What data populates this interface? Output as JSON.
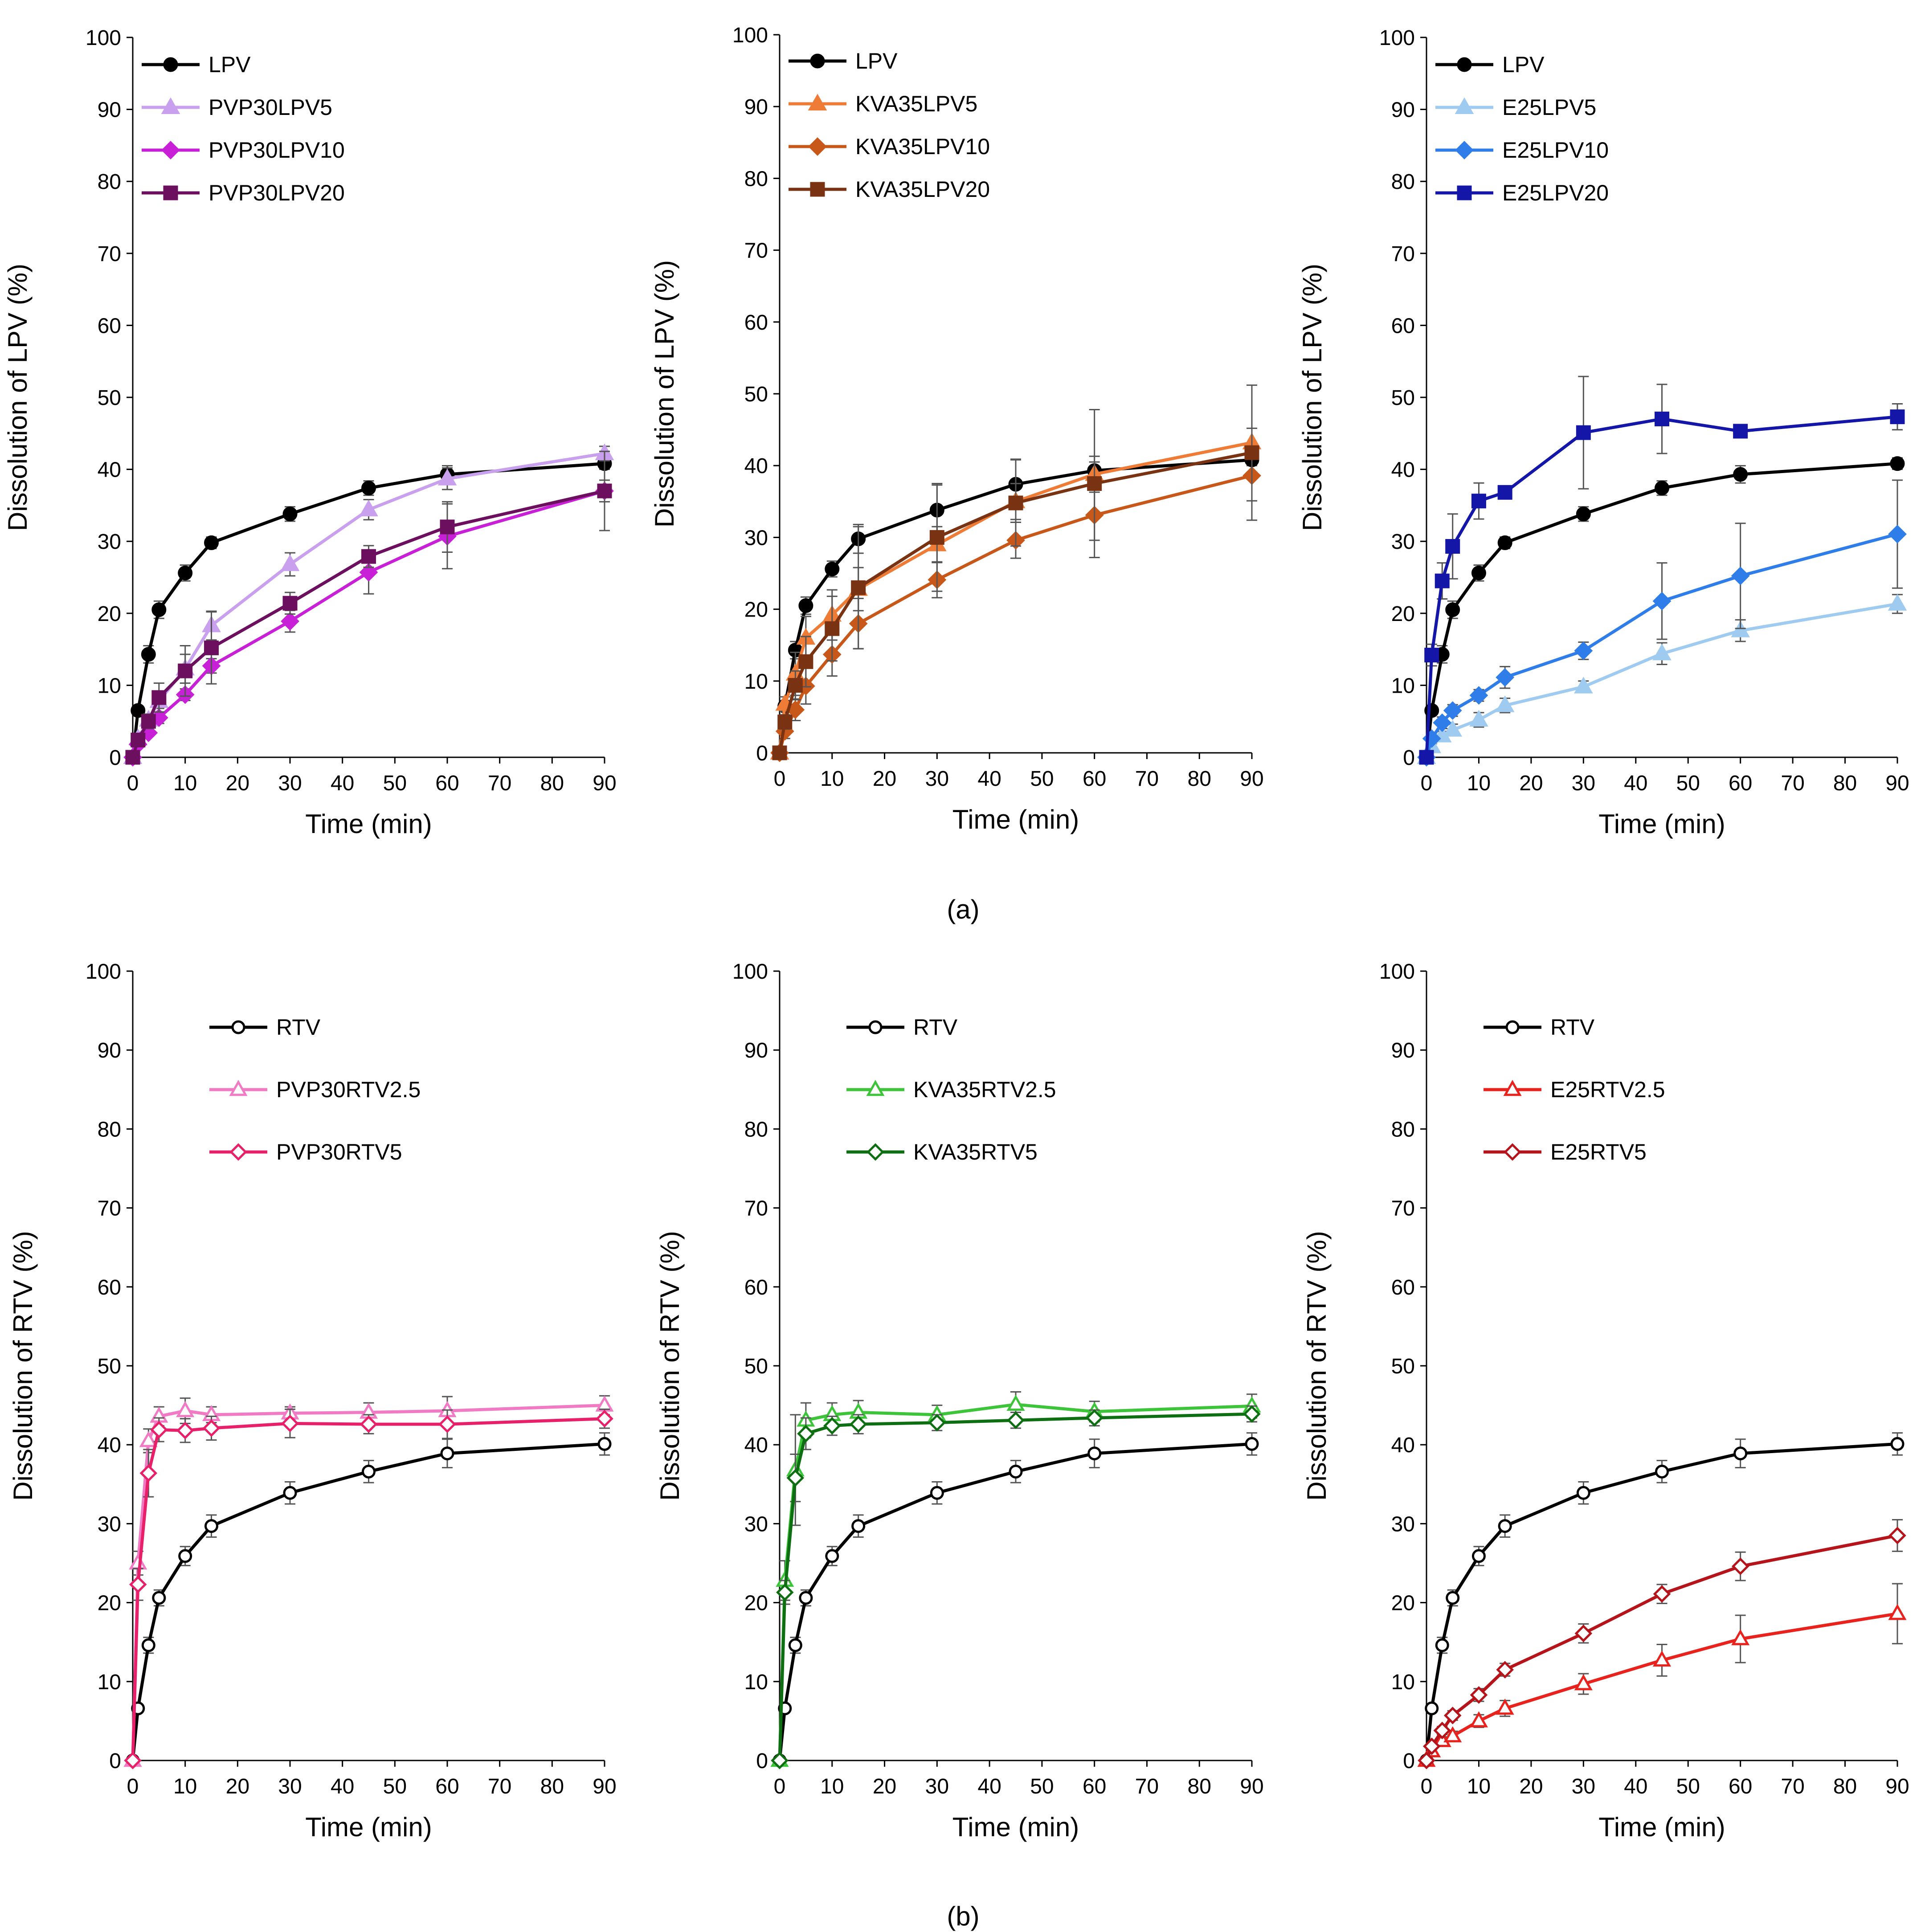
{
  "figure": {
    "caption_a": "(a)",
    "caption_b": "(b)"
  },
  "chart_data": [
    {
      "id": "a1",
      "type": "line",
      "xlabel": "Time (min)",
      "ylabel": "Dissolution of LPV (%)",
      "xlim": [
        0,
        90
      ],
      "xticks": [
        0,
        10,
        20,
        30,
        40,
        50,
        60,
        70,
        80,
        90
      ],
      "ylim": [
        0,
        100
      ],
      "yticks": [
        0,
        10,
        20,
        30,
        40,
        50,
        60,
        70,
        80,
        90,
        100
      ],
      "legend": "top-left",
      "series": [
        {
          "name": "LPV",
          "color": "#000000",
          "marker": "circle",
          "filled": true,
          "x": [
            0,
            1,
            3,
            5,
            10,
            15,
            30,
            45,
            60,
            90
          ],
          "y": [
            0,
            6.5,
            14.3,
            20.5,
            25.6,
            29.8,
            33.8,
            37.4,
            39.3,
            40.8
          ],
          "err": [
            0,
            0.5,
            1.2,
            1.2,
            1.1,
            0.8,
            1.0,
            1.0,
            1.2,
            0.8
          ]
        },
        {
          "name": "PVP30LPV5",
          "color": "#c9a0ee",
          "marker": "triangle",
          "filled": true,
          "x": [
            0,
            1,
            3,
            5,
            10,
            15,
            30,
            45,
            60,
            90
          ],
          "y": [
            0,
            2.6,
            5.2,
            7.8,
            12.3,
            18.3,
            26.8,
            34.4,
            38.7,
            42.2
          ],
          "err": [
            0,
            0.4,
            0.8,
            1.0,
            2.0,
            2.0,
            1.6,
            1.4,
            1.5,
            1.0
          ]
        },
        {
          "name": "PVP30LPV10",
          "color": "#c720d6",
          "marker": "diamond",
          "filled": true,
          "x": [
            0,
            1,
            3,
            5,
            10,
            15,
            30,
            45,
            60,
            90
          ],
          "y": [
            0,
            1.8,
            3.4,
            5.5,
            8.7,
            12.7,
            18.9,
            25.7,
            30.7,
            37.0
          ],
          "err": [
            0,
            0.3,
            0.5,
            0.8,
            0.8,
            1.0,
            1.5,
            3.0,
            4.5,
            5.5
          ]
        },
        {
          "name": "PVP30LPV20",
          "color": "#6b0f5e",
          "marker": "square",
          "filled": true,
          "x": [
            0,
            1,
            3,
            5,
            10,
            15,
            30,
            45,
            60,
            90
          ],
          "y": [
            0,
            2.4,
            5.0,
            8.3,
            12.0,
            15.2,
            21.4,
            27.9,
            32.0,
            37.0
          ],
          "err": [
            0,
            0.5,
            1.0,
            2.0,
            3.5,
            5.0,
            1.5,
            1.5,
            3.5,
            1.5
          ]
        }
      ]
    },
    {
      "id": "a2",
      "type": "line",
      "xlabel": "Time (min)",
      "ylabel": "Dissolution of LPV (%)",
      "xlim": [
        0,
        90
      ],
      "xticks": [
        0,
        10,
        20,
        30,
        40,
        50,
        60,
        70,
        80,
        90
      ],
      "ylim": [
        0,
        100
      ],
      "yticks": [
        0,
        10,
        20,
        30,
        40,
        50,
        60,
        70,
        80,
        90,
        100
      ],
      "legend": "top-left",
      "series": [
        {
          "name": "LPV",
          "color": "#000000",
          "marker": "circle",
          "filled": true,
          "x": [
            0,
            1,
            3,
            5,
            10,
            15,
            30,
            45,
            60,
            90
          ],
          "y": [
            0,
            6.5,
            14.3,
            20.5,
            25.6,
            29.8,
            33.8,
            37.4,
            39.3,
            40.8
          ],
          "err": [
            0,
            0.5,
            1.2,
            1.2,
            1.1,
            2.0,
            3.5,
            3.5,
            1.2,
            0.8
          ]
        },
        {
          "name": "KVA35LPV5",
          "color": "#ee7b36",
          "marker": "triangle",
          "filled": true,
          "x": [
            0,
            1,
            3,
            5,
            10,
            15,
            30,
            45,
            60,
            90
          ],
          "y": [
            0,
            6.8,
            11.0,
            16.0,
            19.2,
            22.8,
            29.0,
            35.0,
            38.8,
            43.2
          ],
          "err": [
            0,
            1.0,
            3.0,
            3.0,
            3.5,
            3.0,
            2.5,
            2.5,
            2.5,
            2.0
          ]
        },
        {
          "name": "KVA35LPV10",
          "color": "#c8571a",
          "marker": "diamond",
          "filled": true,
          "x": [
            0,
            1,
            3,
            5,
            10,
            15,
            30,
            45,
            60,
            90
          ],
          "y": [
            0,
            3.0,
            6.0,
            9.3,
            13.7,
            18.0,
            24.1,
            29.6,
            33.1,
            38.6
          ],
          "err": [
            0,
            1.0,
            1.5,
            2.5,
            3.0,
            3.5,
            2.5,
            2.5,
            3.5,
            3.5
          ]
        },
        {
          "name": "KVA35LPV20",
          "color": "#7a3312",
          "marker": "square",
          "filled": true,
          "x": [
            0,
            1,
            3,
            5,
            10,
            15,
            30,
            45,
            60,
            90
          ],
          "y": [
            0,
            4.3,
            9.4,
            12.7,
            17.3,
            23.0,
            30.0,
            34.8,
            37.5,
            41.8
          ],
          "err": [
            0,
            1.0,
            2.0,
            3.5,
            4.5,
            8.5,
            7.5,
            6.0,
            10.3,
            9.4
          ]
        }
      ]
    },
    {
      "id": "a3",
      "type": "line",
      "xlabel": "Time (min)",
      "ylabel": "Dissolution of LPV (%)",
      "xlim": [
        0,
        90
      ],
      "xticks": [
        0,
        10,
        20,
        30,
        40,
        50,
        60,
        70,
        80,
        90
      ],
      "ylim": [
        0,
        100
      ],
      "yticks": [
        0,
        10,
        20,
        30,
        40,
        50,
        60,
        70,
        80,
        90,
        100
      ],
      "legend": "top-left",
      "series": [
        {
          "name": "LPV",
          "color": "#000000",
          "marker": "circle",
          "filled": true,
          "x": [
            0,
            1,
            3,
            5,
            10,
            15,
            30,
            45,
            60,
            90
          ],
          "y": [
            0,
            6.5,
            14.3,
            20.5,
            25.6,
            29.8,
            33.8,
            37.4,
            39.3,
            40.8
          ],
          "err": [
            0,
            0.5,
            1.2,
            1.2,
            1.1,
            0.8,
            1.0,
            1.0,
            1.2,
            0.8
          ]
        },
        {
          "name": "E25LPV5",
          "color": "#9fcbf0",
          "marker": "triangle",
          "filled": true,
          "x": [
            0,
            1,
            3,
            5,
            10,
            15,
            30,
            45,
            60,
            90
          ],
          "y": [
            0,
            1.5,
            3.0,
            3.8,
            5.2,
            7.2,
            9.8,
            14.4,
            17.6,
            21.3
          ],
          "err": [
            0,
            0.4,
            0.6,
            0.8,
            1.0,
            1.0,
            0.8,
            1.5,
            1.5,
            1.3
          ]
        },
        {
          "name": "E25LPV10",
          "color": "#2f7de8",
          "marker": "diamond",
          "filled": true,
          "x": [
            0,
            1,
            3,
            5,
            10,
            15,
            30,
            45,
            60,
            90
          ],
          "y": [
            0,
            2.6,
            4.8,
            6.5,
            8.6,
            11.1,
            14.8,
            21.7,
            25.2,
            31.0
          ],
          "err": [
            0,
            0.4,
            0.8,
            0.8,
            0.8,
            1.5,
            1.2,
            5.3,
            7.3,
            7.5
          ]
        },
        {
          "name": "E25LPV20",
          "color": "#1416a8",
          "marker": "square",
          "filled": true,
          "x": [
            0,
            1,
            3,
            5,
            10,
            15,
            30,
            45,
            60,
            90
          ],
          "y": [
            0,
            14.2,
            24.5,
            29.3,
            35.6,
            36.8,
            45.1,
            47.0,
            45.3,
            47.3
          ],
          "err": [
            0,
            1.5,
            2.5,
            4.5,
            2.5,
            0.8,
            7.8,
            4.8,
            0.8,
            1.8
          ]
        }
      ]
    },
    {
      "id": "b1",
      "type": "line",
      "xlabel": "Time (min)",
      "ylabel": "Dissolution of RTV (%)",
      "xlim": [
        0,
        90
      ],
      "xticks": [
        0,
        10,
        20,
        30,
        40,
        50,
        60,
        70,
        80,
        90
      ],
      "ylim": [
        0,
        100
      ],
      "yticks": [
        0,
        10,
        20,
        30,
        40,
        50,
        60,
        70,
        80,
        90,
        100
      ],
      "legend": "top-center",
      "series": [
        {
          "name": "RTV",
          "color": "#000000",
          "marker": "circle",
          "filled": false,
          "x": [
            0,
            1,
            3,
            5,
            10,
            15,
            30,
            45,
            60,
            90
          ],
          "y": [
            0,
            6.6,
            14.6,
            20.6,
            25.9,
            29.7,
            33.9,
            36.6,
            38.9,
            40.1
          ],
          "err": [
            0,
            0.5,
            1.0,
            1.0,
            1.2,
            1.4,
            1.4,
            1.4,
            1.8,
            1.4
          ]
        },
        {
          "name": "PVP30RTV2.5",
          "color": "#f07ac4",
          "marker": "triangle",
          "filled": false,
          "x": [
            0,
            1,
            3,
            5,
            10,
            15,
            30,
            45,
            60,
            90
          ],
          "y": [
            0,
            25.0,
            40.5,
            43.6,
            44.3,
            43.8,
            44.0,
            44.1,
            44.3,
            45.0
          ],
          "err": [
            0,
            1.5,
            1.5,
            1.2,
            1.6,
            1.0,
            0.8,
            1.2,
            1.8,
            1.2
          ]
        },
        {
          "name": "PVP30RTV5",
          "color": "#e8206a",
          "marker": "diamond",
          "filled": false,
          "x": [
            0,
            1,
            3,
            5,
            10,
            15,
            30,
            45,
            60,
            90
          ],
          "y": [
            0,
            22.3,
            36.4,
            41.9,
            41.8,
            42.1,
            42.7,
            42.6,
            42.6,
            43.3
          ],
          "err": [
            0,
            2.0,
            3.0,
            1.5,
            1.5,
            1.5,
            1.8,
            1.2,
            1.8,
            1.2
          ]
        }
      ]
    },
    {
      "id": "b2",
      "type": "line",
      "xlabel": "Time (min)",
      "ylabel": "Dissolution of RTV (%)",
      "xlim": [
        0,
        90
      ],
      "xticks": [
        0,
        10,
        20,
        30,
        40,
        50,
        60,
        70,
        80,
        90
      ],
      "ylim": [
        0,
        100
      ],
      "yticks": [
        0,
        10,
        20,
        30,
        40,
        50,
        60,
        70,
        80,
        90,
        100
      ],
      "legend": "top-center",
      "series": [
        {
          "name": "RTV",
          "color": "#000000",
          "marker": "circle",
          "filled": false,
          "x": [
            0,
            1,
            3,
            5,
            10,
            15,
            30,
            45,
            60,
            90
          ],
          "y": [
            0,
            6.6,
            14.6,
            20.6,
            25.9,
            29.7,
            33.9,
            36.6,
            38.9,
            40.1
          ],
          "err": [
            0,
            0.5,
            1.0,
            1.0,
            1.2,
            1.4,
            1.4,
            1.4,
            1.8,
            1.4
          ]
        },
        {
          "name": "KVA35RTV2.5",
          "color": "#3ec43a",
          "marker": "triangle",
          "filled": false,
          "x": [
            0,
            1,
            3,
            5,
            10,
            15,
            30,
            45,
            60,
            90
          ],
          "y": [
            0,
            22.8,
            36.8,
            43.1,
            43.8,
            44.1,
            43.8,
            45.1,
            44.2,
            44.9
          ],
          "err": [
            0,
            2.5,
            7.0,
            2.2,
            1.5,
            1.5,
            1.2,
            1.6,
            1.3,
            1.5
          ]
        },
        {
          "name": "KVA35RTV5",
          "color": "#0e6e12",
          "marker": "diamond",
          "filled": false,
          "x": [
            0,
            1,
            3,
            5,
            10,
            15,
            30,
            45,
            60,
            90
          ],
          "y": [
            0,
            21.3,
            35.8,
            41.4,
            42.4,
            42.6,
            42.8,
            43.1,
            43.4,
            43.9
          ],
          "err": [
            0,
            1.5,
            3.0,
            2.0,
            1.2,
            1.2,
            1.0,
            1.0,
            1.0,
            1.0
          ]
        }
      ]
    },
    {
      "id": "b3",
      "type": "line",
      "xlabel": "Time (min)",
      "ylabel": "Dissolution of RTV (%)",
      "xlim": [
        0,
        90
      ],
      "xticks": [
        0,
        10,
        20,
        30,
        40,
        50,
        60,
        70,
        80,
        90
      ],
      "ylim": [
        0,
        100
      ],
      "yticks": [
        0,
        10,
        20,
        30,
        40,
        50,
        60,
        70,
        80,
        90,
        100
      ],
      "legend": "top-center",
      "series": [
        {
          "name": "RTV",
          "color": "#000000",
          "marker": "circle",
          "filled": false,
          "x": [
            0,
            1,
            3,
            5,
            10,
            15,
            30,
            45,
            60,
            90
          ],
          "y": [
            0,
            6.6,
            14.6,
            20.6,
            25.9,
            29.7,
            33.9,
            36.6,
            38.9,
            40.1
          ],
          "err": [
            0,
            0.5,
            1.0,
            1.0,
            1.2,
            1.4,
            1.4,
            1.4,
            1.8,
            1.4
          ]
        },
        {
          "name": "E25RTV2.5",
          "color": "#e8221c",
          "marker": "triangle",
          "filled": false,
          "x": [
            0,
            1,
            3,
            5,
            10,
            15,
            30,
            45,
            60,
            90
          ],
          "y": [
            0,
            1.2,
            2.5,
            3.1,
            5.0,
            6.6,
            9.7,
            12.7,
            15.4,
            18.6
          ],
          "err": [
            0,
            0.3,
            0.5,
            0.6,
            0.8,
            1.0,
            1.3,
            2.0,
            3.0,
            3.8
          ]
        },
        {
          "name": "E25RTV5",
          "color": "#b5141a",
          "marker": "diamond",
          "filled": false,
          "x": [
            0,
            1,
            3,
            5,
            10,
            15,
            30,
            45,
            60,
            90
          ],
          "y": [
            0,
            1.8,
            3.8,
            5.7,
            8.3,
            11.5,
            16.1,
            21.1,
            24.6,
            28.5
          ],
          "err": [
            0,
            0.3,
            0.5,
            0.6,
            0.8,
            0.8,
            1.2,
            1.2,
            1.8,
            2.0
          ]
        }
      ]
    }
  ]
}
